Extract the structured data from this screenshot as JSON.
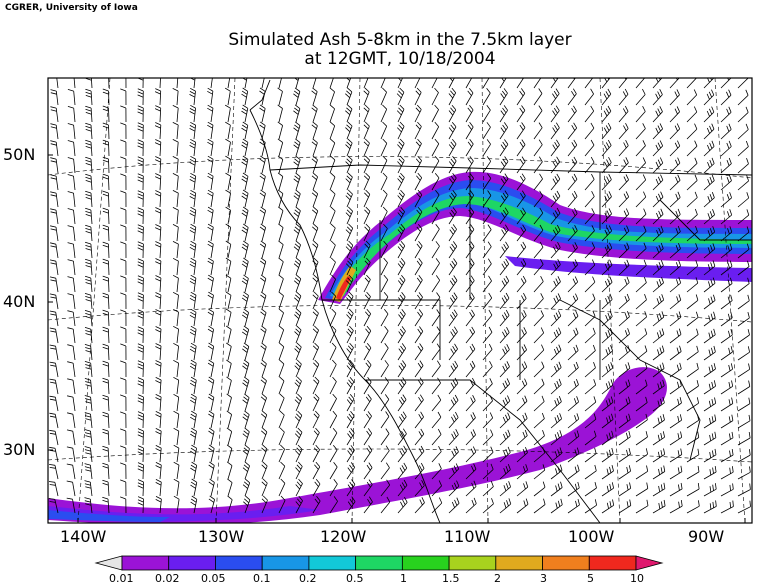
{
  "credit": "CGRER, University of Iowa",
  "title": {
    "line1": "Simulated Ash 5-8km in the 7.5km layer",
    "line2": "at 12GMT, 10/18/2004"
  },
  "axes": {
    "lat_labels": [
      "50N",
      "40N",
      "30N"
    ],
    "lon_labels": [
      "140W",
      "130W",
      "120W",
      "110W",
      "100W",
      "90W"
    ]
  },
  "colorbar": {
    "labels": [
      "0.01",
      "0.02",
      "0.05",
      "0.1",
      "0.2",
      "0.5",
      "1",
      "1.5",
      "2",
      "3",
      "5",
      "10"
    ],
    "colors": [
      "#e6e6e6",
      "#9b13d6",
      "#6a1ef0",
      "#2a4df0",
      "#1896e6",
      "#12c8d8",
      "#1ed664",
      "#28d21e",
      "#a8d21e",
      "#e0aa1e",
      "#f07f1e",
      "#f0281e",
      "#e0186e"
    ]
  },
  "map": {
    "land_color": "#ffffff",
    "line_color": "#000000"
  }
}
